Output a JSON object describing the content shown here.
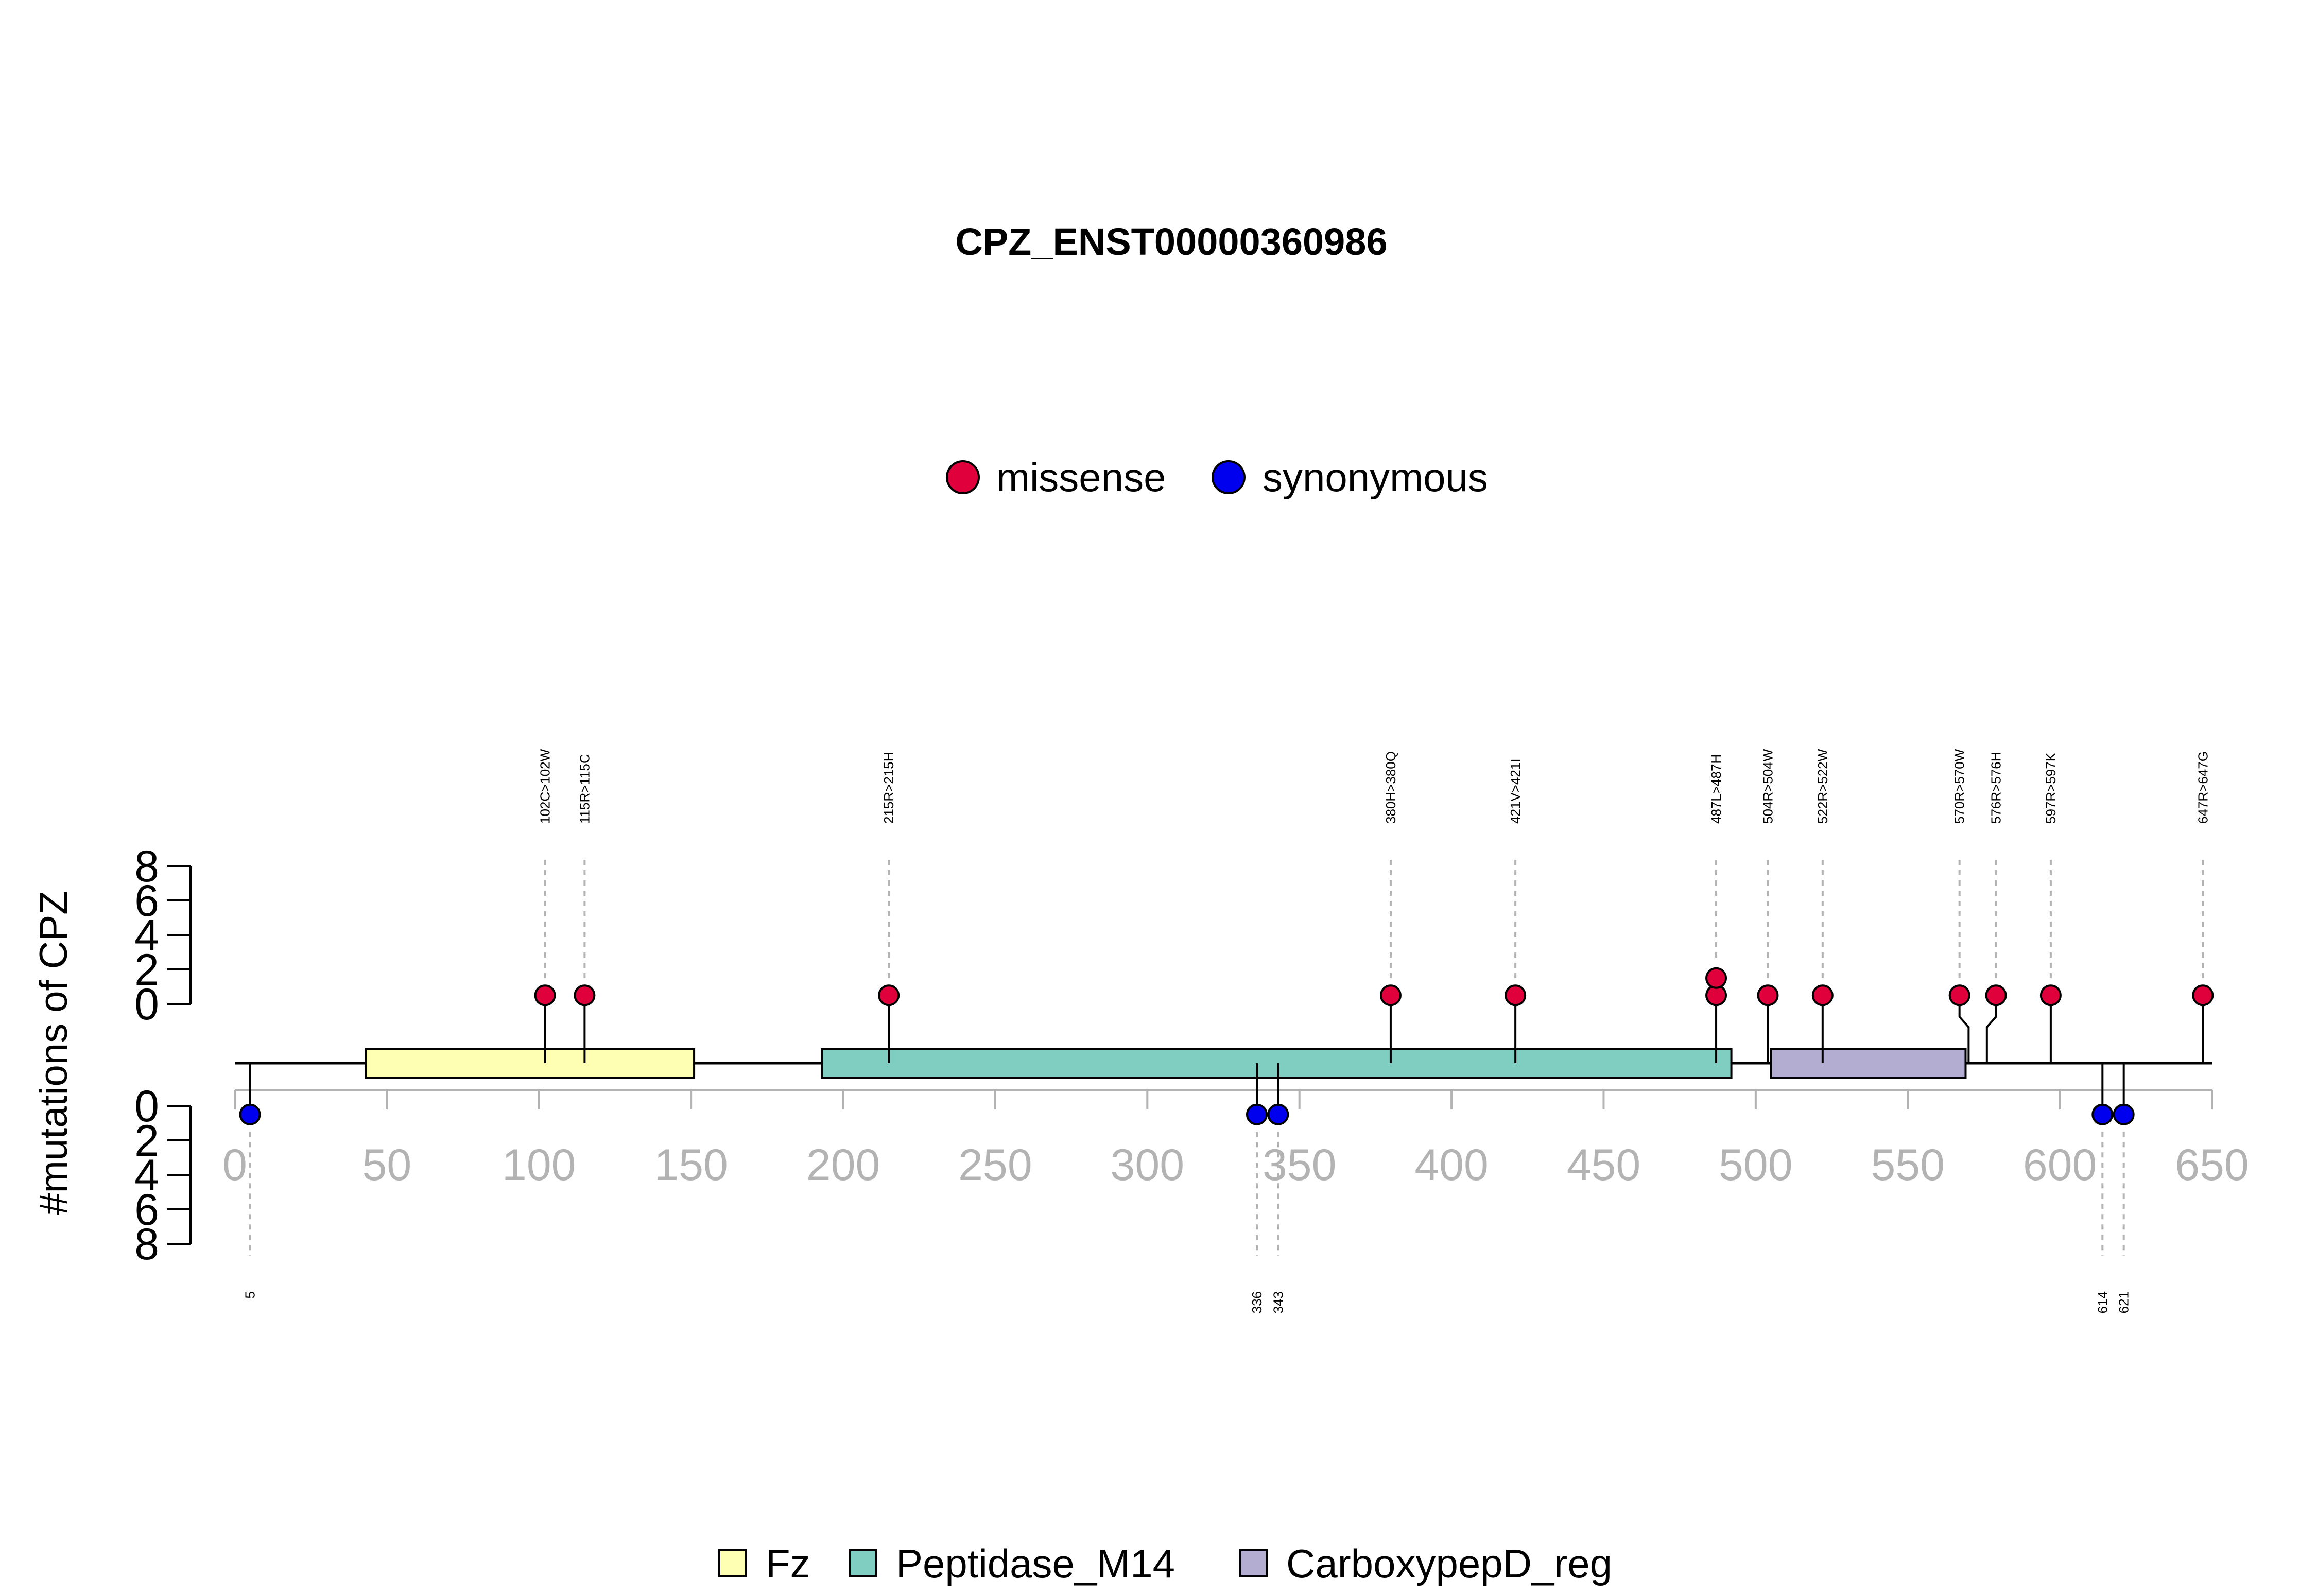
{
  "chart_data": {
    "type": "lollipop",
    "title": "CPZ_ENST00000360986",
    "ylabel": "#mutations of CPZ",
    "xlim": [
      0,
      650
    ],
    "x_ticks": [
      0,
      50,
      100,
      150,
      200,
      250,
      300,
      350,
      400,
      450,
      500,
      550,
      600,
      650
    ],
    "y_ticks": [
      0,
      2,
      4,
      6,
      8
    ],
    "ylim_upper": [
      0,
      8
    ],
    "ylim_lower": [
      0,
      8
    ],
    "mutation_legend": [
      {
        "name": "missense",
        "color": "#e0003c"
      },
      {
        "name": "synonymous",
        "color": "#0000ee"
      }
    ],
    "domains": [
      {
        "name": "Fz",
        "start": 43,
        "end": 151,
        "color": "#ffffb3"
      },
      {
        "name": "Peptidase_M14",
        "start": 193,
        "end": 492,
        "color": "#80cdc1"
      },
      {
        "name": "CarboxypepD_reg",
        "start": 505,
        "end": 569,
        "color": "#b3aed1"
      }
    ],
    "missense": [
      {
        "pos": 102,
        "label": "102C>102W",
        "count": 1
      },
      {
        "pos": 115,
        "label": "115R>115C",
        "count": 1
      },
      {
        "pos": 215,
        "label": "215R>215H",
        "count": 1
      },
      {
        "pos": 380,
        "label": "380H>380Q",
        "count": 1
      },
      {
        "pos": 421,
        "label": "421V>421I",
        "count": 1
      },
      {
        "pos": 487,
        "label": "487L>487H",
        "count": 2
      },
      {
        "pos": 504,
        "label": "504R>504W",
        "count": 1
      },
      {
        "pos": 522,
        "label": "522R>522W",
        "count": 1
      },
      {
        "pos": 570,
        "label": "570R>570W",
        "count": 1
      },
      {
        "pos": 576,
        "label": "576R>576H",
        "count": 1
      },
      {
        "pos": 597,
        "label": "597R>597K",
        "count": 1
      },
      {
        "pos": 647,
        "label": "647R>647G",
        "count": 1
      }
    ],
    "synonymous": [
      {
        "pos": 5,
        "label": "5",
        "count": 1
      },
      {
        "pos": 336,
        "label": "336",
        "count": 1
      },
      {
        "pos": 343,
        "label": "343",
        "count": 1
      },
      {
        "pos": 614,
        "label": "614",
        "count": 1
      },
      {
        "pos": 621,
        "label": "621",
        "count": 1
      }
    ]
  }
}
